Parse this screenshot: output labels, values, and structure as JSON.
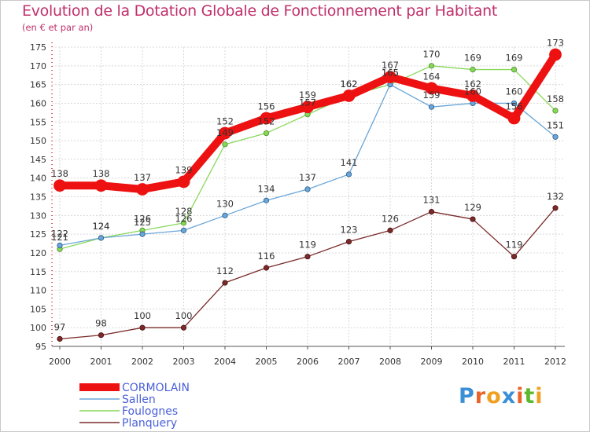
{
  "title": "Evolution de la Dotation Globale de Fonctionnement par Habitant",
  "subtitle": "(en € et par an)",
  "logo": {
    "letters": [
      "P",
      "r",
      "o",
      "x",
      "i",
      "t",
      "i"
    ],
    "colors": [
      "#3a8fd6",
      "#e8642a",
      "#f0a020",
      "#3a8fd6",
      "#e8642a",
      "#5cb82e",
      "#f0a020"
    ]
  },
  "chart_data": {
    "type": "line",
    "title": "Evolution de la Dotation Globale de Fonctionnement par Habitant",
    "xlabel": "",
    "ylabel": "(en € et par an)",
    "ylim": [
      95,
      175
    ],
    "yticks": [
      95,
      100,
      105,
      110,
      115,
      120,
      125,
      130,
      135,
      140,
      145,
      150,
      155,
      160,
      165,
      170,
      175
    ],
    "x": [
      2000,
      2001,
      2002,
      2003,
      2004,
      2005,
      2006,
      2007,
      2008,
      2009,
      2010,
      2011,
      2012
    ],
    "series": [
      {
        "name": "Foulognes",
        "color": "#88d858",
        "values": [
          121,
          124,
          126,
          128,
          149,
          152,
          157,
          162,
          165,
          170,
          169,
          169,
          158
        ]
      },
      {
        "name": "Sallen",
        "color": "#6aa6d8",
        "values": [
          122,
          124,
          125,
          126,
          130,
          134,
          137,
          141,
          165,
          159,
          160,
          160,
          151
        ]
      },
      {
        "name": "Planquery",
        "color": "#7a2a2a",
        "values": [
          97,
          98,
          100,
          100,
          112,
          116,
          119,
          123,
          126,
          131,
          129,
          119,
          132
        ]
      },
      {
        "name": "CORMOLAIN",
        "color": "#ee1111",
        "values": [
          138,
          138,
          137,
          139,
          152,
          156,
          159,
          162,
          167,
          164,
          162,
          156,
          173
        ]
      }
    ],
    "legend": [
      "CORMOLAIN",
      "Sallen",
      "Foulognes",
      "Planquery"
    ],
    "grid": true,
    "legend_position": "bottom-left"
  }
}
